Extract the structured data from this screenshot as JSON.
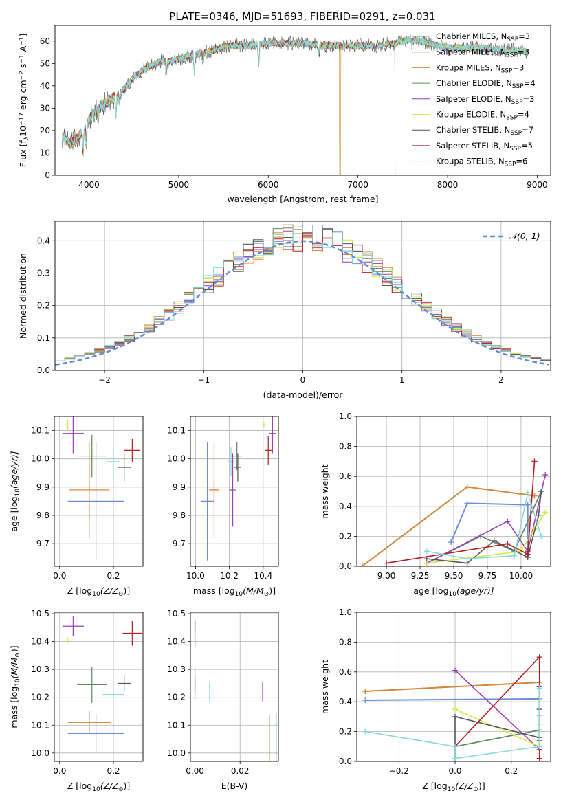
{
  "figure_title": "PLATE=0346, MJD=51693, FIBERID=0291, z=0.031",
  "colors": {
    "Chabrier MILES": "#6a8fd6",
    "Salpeter MILES": "#e07b3a",
    "Kroupa MILES": "#cc8a3a",
    "Chabrier ELODIE": "#5f8660",
    "Salpeter ELODIE": "#9b3fb5",
    "Kroupa ELODIE": "#d6e84a",
    "Chabrier STELIB": "#555555",
    "Salpeter STELIB": "#b21e22",
    "Kroupa STELIB": "#86dada",
    "gaussian": "#5b8bd6"
  },
  "chart_data": [
    {
      "id": "spectrum",
      "type": "line",
      "title": "PLATE=0346, MJD=51693, FIBERID=0291, z=0.031",
      "xlabel": "wavelength [Angstrom, rest frame]",
      "ylabel_parts": {
        "a": "Flux [f",
        "b": "λ",
        "c": "10",
        "d": "−17",
        "e": " erg cm",
        "f": "−2",
        "g": " s",
        "h": "−1",
        "i": " A",
        "j": "−1",
        "k": "]"
      },
      "xlim": [
        3620,
        9150
      ],
      "ylim": [
        0,
        67
      ],
      "xticks": [
        4000,
        5000,
        6000,
        7000,
        8000,
        9000
      ],
      "yticks": [
        0,
        10,
        20,
        30,
        40,
        50,
        60
      ],
      "legend_position": "top-right",
      "legend": [
        {
          "name": "Chabrier MILES",
          "nssp": "=3"
        },
        {
          "name": "Salpeter MILES",
          "nssp": "=3"
        },
        {
          "name": "Kroupa MILES",
          "nssp": "=3"
        },
        {
          "name": "Chabrier ELODIE",
          "nssp": "=4"
        },
        {
          "name": "Salpeter ELODIE",
          "nssp": "=3"
        },
        {
          "name": "Kroupa ELODIE",
          "nssp": "=4"
        },
        {
          "name": "Chabrier STELIB",
          "nssp": "=7"
        },
        {
          "name": "Salpeter STELIB",
          "nssp": "=5"
        },
        {
          "name": "Kroupa STELIB",
          "nssp": "=6"
        }
      ],
      "legend_nssp_prefix": "N",
      "legend_nssp_sub": "SSP",
      "continuum": {
        "x": [
          3700,
          3800,
          3900,
          4000,
          4100,
          4200,
          4300,
          4400,
          4500,
          4600,
          4700,
          4800,
          4900,
          5000,
          5200,
          5400,
          5600,
          5800,
          6000,
          6200,
          6400,
          6600,
          6800,
          7000,
          7200,
          7400,
          7600,
          7800,
          8000,
          8200,
          8400,
          8600,
          8800,
          8900
        ],
        "y": [
          17,
          14,
          18,
          25,
          30,
          33,
          35,
          39,
          44,
          47,
          49,
          51,
          51,
          52,
          54,
          56,
          58,
          58,
          59,
          59,
          59,
          58,
          58,
          58,
          58,
          59,
          61,
          59,
          57,
          57,
          57,
          56,
          56,
          55
        ]
      },
      "absorption": [
        {
          "x": 3934,
          "depth": 10
        },
        {
          "x": 3969,
          "depth": 9
        },
        {
          "x": 4102,
          "depth": 5
        },
        {
          "x": 4300,
          "depth": 8
        },
        {
          "x": 4340,
          "depth": 5
        },
        {
          "x": 4861,
          "depth": 5
        },
        {
          "x": 5175,
          "depth": 8
        },
        {
          "x": 5270,
          "depth": 4
        },
        {
          "x": 5893,
          "depth": 9
        },
        {
          "x": 6563,
          "depth": 4
        },
        {
          "x": 7200,
          "depth": 3
        },
        {
          "x": 7600,
          "depth": 3
        }
      ],
      "model_drops": [
        {
          "series": "Kroupa MILES",
          "x": 6800
        },
        {
          "series": "Salpeter STELIB",
          "x": 7420
        }
      ]
    },
    {
      "id": "residuals",
      "type": "histogram",
      "xlabel": "(data-model)/error",
      "ylabel": "Normed distribution",
      "xlim": [
        -2.5,
        2.5
      ],
      "ylim": [
        0,
        0.46
      ],
      "xticks": [
        -2,
        -1,
        0,
        1,
        2
      ],
      "yticks": [
        0.0,
        0.1,
        0.2,
        0.3,
        0.4
      ],
      "grid": true,
      "legend_position": "top-right",
      "gaussian_label": "𝒩(0, 1)",
      "bin_width": 0.1
    },
    {
      "id": "age_vs_Z",
      "type": "errorbar",
      "xlabel_main": "Z [log",
      "xlabel_sub": "10",
      "xlabel_tail": "(Z/Z",
      "xlabel_sun": "⊙",
      "xlabel_end": ")]",
      "ylabel_main": "age  [log",
      "ylabel_sub": "10",
      "ylabel_tail": "(age/yr)]",
      "xlim": [
        -0.02,
        0.31
      ],
      "ylim": [
        9.62,
        10.15
      ],
      "xticks": [
        "0.0",
        "0.2"
      ],
      "xtick_vals": [
        0.0,
        0.2
      ],
      "yticks": [
        "9.7",
        "9.8",
        "9.9",
        "10.0",
        "10.1"
      ],
      "ytick_vals": [
        9.7,
        9.8,
        9.9,
        10.0,
        10.1
      ],
      "points": [
        {
          "series": "Chabrier MILES",
          "x": 0.135,
          "y": 9.85,
          "xerr": 0.105,
          "yerr": 0.21
        },
        {
          "series": "Salpeter MILES",
          "x": 0.11,
          "y": 9.89,
          "xerr": 0.075,
          "yerr": 0.09
        },
        {
          "series": "Kroupa MILES",
          "x": 0.11,
          "y": 9.89,
          "xerr": 0.07,
          "yerr": 0.17
        },
        {
          "series": "Chabrier ELODIE",
          "x": 0.12,
          "y": 10.01,
          "xerr": 0.055,
          "yerr": 0.075
        },
        {
          "series": "Salpeter ELODIE",
          "x": 0.05,
          "y": 10.09,
          "xerr": 0.04,
          "yerr": 0.07
        },
        {
          "series": "Kroupa ELODIE",
          "x": 0.03,
          "y": 10.12,
          "xerr": 0.015,
          "yerr": 0.02
        },
        {
          "series": "Chabrier STELIB",
          "x": 0.24,
          "y": 9.97,
          "xerr": 0.025,
          "yerr": 0.05
        },
        {
          "series": "Salpeter STELIB",
          "x": 0.27,
          "y": 10.03,
          "xerr": 0.03,
          "yerr": 0.04
        },
        {
          "series": "Kroupa STELIB",
          "x": 0.2,
          "y": 9.99,
          "xerr": 0.025,
          "yerr": 0.05
        }
      ]
    },
    {
      "id": "age_vs_mass",
      "type": "errorbar",
      "xlabel_main": "mass [log",
      "xlabel_sub": "10",
      "xlabel_tail": "(M/M",
      "xlabel_sun": "⊙",
      "xlabel_end": ")]",
      "xlim": [
        9.97,
        10.49
      ],
      "ylim": [
        9.62,
        10.15
      ],
      "xticks": [
        "10.0",
        "10.2",
        "10.4"
      ],
      "xtick_vals": [
        10.0,
        10.2,
        10.4
      ],
      "yticks": [
        "9.7",
        "9.8",
        "9.9",
        "10.0",
        "10.1"
      ],
      "ytick_vals": [
        9.7,
        9.8,
        9.9,
        10.0,
        10.1
      ],
      "points": [
        {
          "series": "Chabrier MILES",
          "x": 10.07,
          "y": 9.85,
          "xerr": 0.04,
          "yerr": 0.21
        },
        {
          "series": "Salpeter MILES",
          "x": 10.11,
          "y": 9.89,
          "xerr": 0.03,
          "yerr": 0.04
        },
        {
          "series": "Kroupa MILES",
          "x": 10.11,
          "y": 9.89,
          "xerr": 0.02,
          "yerr": 0.17
        },
        {
          "series": "Chabrier ELODIE",
          "x": 10.245,
          "y": 10.01,
          "xerr": 0.03,
          "yerr": 0.05
        },
        {
          "series": "Salpeter ELODIE",
          "x": 10.455,
          "y": 10.09,
          "xerr": 0.02,
          "yerr": 0.07
        },
        {
          "series": "Kroupa ELODIE",
          "x": 10.405,
          "y": 10.12,
          "xerr": 0.01,
          "yerr": 0.01
        },
        {
          "series": "Chabrier STELIB",
          "x": 10.25,
          "y": 9.97,
          "xerr": 0.02,
          "yerr": 0.05
        },
        {
          "series": "Salpeter STELIB",
          "x": 10.43,
          "y": 10.03,
          "xerr": 0.02,
          "yerr": 0.05
        },
        {
          "series": "Kroupa STELIB",
          "x": 10.21,
          "y": 9.99,
          "xerr": 0.02,
          "yerr": 0.05
        },
        {
          "series": "Salpeter ELODIE",
          "x": 10.22,
          "y": 9.89,
          "xerr": 0.02,
          "yerr": 0.13
        }
      ]
    },
    {
      "id": "mass_weight_vs_age",
      "type": "line",
      "xlabel_main": "age  [log",
      "xlabel_sub": "10",
      "xlabel_tail": "(age/yr)]",
      "ylabel": "mass weight",
      "xlim": [
        8.78,
        10.22
      ],
      "ylim": [
        0,
        1
      ],
      "xticks": [
        "9.00",
        "9.25",
        "9.50",
        "9.75",
        "10.00"
      ],
      "xtick_vals": [
        9.0,
        9.25,
        9.5,
        9.75,
        10.0
      ],
      "yticks": [
        "0.0",
        "0.2",
        "0.4",
        "0.6",
        "0.8",
        "1.0"
      ],
      "ytick_vals": [
        0,
        0.2,
        0.4,
        0.6,
        0.8,
        1.0
      ],
      "grid": true,
      "series": [
        {
          "name": "Chabrier MILES",
          "x": [
            9.48,
            9.6,
            10.05,
            10.05
          ],
          "y": [
            0.16,
            0.42,
            0.41,
            0.1
          ]
        },
        {
          "name": "Salpeter MILES",
          "x": [
            8.82,
            9.6,
            10.1
          ],
          "y": [
            0.0,
            0.53,
            0.47
          ]
        },
        {
          "name": "Kroupa MILES",
          "x": [
            8.82,
            9.6,
            10.1
          ],
          "y": [
            0.0,
            0.53,
            0.47
          ]
        },
        {
          "name": "Chabrier ELODIE",
          "x": [
            9.3,
            9.7,
            9.95,
            10.15
          ],
          "y": [
            0.02,
            0.2,
            0.1,
            0.5
          ]
        },
        {
          "name": "Salpeter ELODIE",
          "x": [
            9.3,
            9.9,
            10.05,
            10.18
          ],
          "y": [
            0.02,
            0.3,
            0.1,
            0.61
          ]
        },
        {
          "name": "Kroupa ELODIE",
          "x": [
            9.3,
            10.0,
            10.1,
            10.18
          ],
          "y": [
            0.02,
            0.1,
            0.25,
            0.36
          ]
        },
        {
          "name": "Chabrier STELIB",
          "x": [
            9.3,
            9.6,
            9.8,
            10.05,
            10.13,
            10.15
          ],
          "y": [
            0.05,
            0.02,
            0.17,
            0.06,
            0.34,
            0.5
          ]
        },
        {
          "name": "Salpeter STELIB",
          "x": [
            9.0,
            9.9,
            10.05,
            10.1
          ],
          "y": [
            0.02,
            0.15,
            0.08,
            0.7
          ]
        },
        {
          "name": "Kroupa STELIB",
          "x": [
            9.3,
            9.6,
            9.95,
            10.05,
            10.15
          ],
          "y": [
            0.1,
            0.05,
            0.07,
            0.49,
            0.2
          ]
        }
      ]
    },
    {
      "id": "mass_vs_Z",
      "type": "errorbar",
      "xlabel_main": "Z [log",
      "xlabel_sub": "10",
      "xlabel_tail": "(Z/Z",
      "xlabel_sun": "⊙",
      "xlabel_end": ")]",
      "ylabel_main": "mass [log",
      "ylabel_sub": "10",
      "ylabel_tail": "(M/M",
      "ylabel_sun": "⊙",
      "ylabel_end": ")]",
      "xlim": [
        -0.02,
        0.31
      ],
      "ylim": [
        9.97,
        10.505
      ],
      "xticks": [
        "0.0",
        "0.2"
      ],
      "xtick_vals": [
        0.0,
        0.2
      ],
      "yticks": [
        "10.0",
        "10.1",
        "10.2",
        "10.3",
        "10.4",
        "10.5"
      ],
      "ytick_vals": [
        10.0,
        10.1,
        10.2,
        10.3,
        10.4,
        10.5
      ],
      "points": [
        {
          "series": "Chabrier MILES",
          "x": 0.135,
          "y": 10.07,
          "xerr": 0.105,
          "yerr": 0.07
        },
        {
          "series": "Salpeter MILES",
          "x": 0.11,
          "y": 10.11,
          "xerr": 0.08,
          "yerr": 0.04
        },
        {
          "series": "Kroupa MILES",
          "x": 0.11,
          "y": 10.11,
          "xerr": 0.07,
          "yerr": 0.03
        },
        {
          "series": "Chabrier ELODIE",
          "x": 0.12,
          "y": 10.245,
          "xerr": 0.055,
          "yerr": 0.065
        },
        {
          "series": "Salpeter ELODIE",
          "x": 0.05,
          "y": 10.455,
          "xerr": 0.04,
          "yerr": 0.035
        },
        {
          "series": "Kroupa ELODIE",
          "x": 0.03,
          "y": 10.405,
          "xerr": 0.015,
          "yerr": 0.01
        },
        {
          "series": "Chabrier STELIB",
          "x": 0.24,
          "y": 10.25,
          "xerr": 0.025,
          "yerr": 0.03
        },
        {
          "series": "Salpeter STELIB",
          "x": 0.27,
          "y": 10.43,
          "xerr": 0.035,
          "yerr": 0.045
        },
        {
          "series": "Kroupa STELIB",
          "x": 0.2,
          "y": 10.21,
          "xerr": 0.04,
          "yerr": 0.01
        }
      ]
    },
    {
      "id": "mass_vs_ebv",
      "type": "errorbar",
      "xlabel": "E(B-V)",
      "xlim": [
        -0.002,
        0.037
      ],
      "ylim": [
        9.97,
        10.505
      ],
      "xticks": [
        "0.00",
        "0.02"
      ],
      "xtick_vals": [
        0.0,
        0.02
      ],
      "yticks": [
        "10.0",
        "10.1",
        "10.2",
        "10.3",
        "10.4",
        "10.5"
      ],
      "ytick_vals": [
        10.0,
        10.1,
        10.2,
        10.3,
        10.4,
        10.5
      ],
      "points": [
        {
          "series": "Salpeter STELIB",
          "x": 0.0,
          "y": 10.43,
          "xerr": 0.0,
          "yerr": 0.05
        },
        {
          "series": "Salpeter ELODIE",
          "x": 0.0,
          "y": 10.455,
          "xerr": 0.0,
          "yerr": 0.02
        },
        {
          "series": "Chabrier ELODIE",
          "x": 0.0,
          "y": 10.25,
          "xerr": 0.0,
          "yerr": 0.06
        },
        {
          "series": "Chabrier STELIB",
          "x": 0.0,
          "y": 10.25,
          "xerr": 0.0,
          "yerr": 0.03
        },
        {
          "series": "Kroupa STELIB",
          "x": 0.0065,
          "y": 10.22,
          "xerr": 0.0,
          "yerr": 0.035
        },
        {
          "series": "Salpeter ELODIE",
          "x": 0.03,
          "y": 10.22,
          "xerr": 0.0,
          "yerr": 0.035
        },
        {
          "series": "Kroupa MILES",
          "x": 0.033,
          "y": 10.05,
          "xerr": 0.0,
          "yerr": 0.085
        },
        {
          "series": "Chabrier MILES",
          "x": 0.036,
          "y": 10.04,
          "xerr": 0.0,
          "yerr": 0.105
        }
      ]
    },
    {
      "id": "mass_weight_vs_Z",
      "type": "line",
      "xlabel_main": "Z [log",
      "xlabel_sub": "10",
      "xlabel_tail": "(Z/Z",
      "xlabel_sun": "⊙",
      "xlabel_end": ")]",
      "ylabel": "mass weight",
      "xlim": [
        -0.35,
        0.34
      ],
      "ylim": [
        0,
        1
      ],
      "xticks": [
        "−0.2",
        "0.0",
        "0.2"
      ],
      "xtick_vals": [
        -0.2,
        0.0,
        0.2
      ],
      "yticks": [
        "0.0",
        "0.2",
        "0.4",
        "0.6",
        "0.8",
        "1.0"
      ],
      "ytick_vals": [
        0,
        0.2,
        0.4,
        0.6,
        0.8,
        1.0
      ],
      "grid": true,
      "series": [
        {
          "name": "Chabrier MILES",
          "x": [
            -0.32,
            0.3
          ],
          "y": [
            0.41,
            0.42
          ]
        },
        {
          "name": "Salpeter MILES",
          "x": [
            -0.32,
            0.3
          ],
          "y": [
            0.47,
            0.53
          ]
        },
        {
          "name": "Kroupa MILES",
          "x": [
            -0.32,
            0.3
          ],
          "y": [
            0.47,
            0.53
          ]
        },
        {
          "name": "Chabrier ELODIE",
          "x": [
            0.0,
            0.3,
            0.3
          ],
          "y": [
            0.1,
            0.21,
            0.14
          ]
        },
        {
          "name": "Salpeter ELODIE",
          "x": [
            0.0,
            0.3,
            0.3
          ],
          "y": [
            0.61,
            0.08,
            0.31
          ]
        },
        {
          "name": "Kroupa ELODIE",
          "x": [
            0.0,
            0.3,
            0.3
          ],
          "y": [
            0.35,
            0.1,
            0.25
          ]
        },
        {
          "name": "Chabrier STELIB",
          "x": [
            0.0,
            0.0,
            0.3,
            0.3,
            0.3
          ],
          "y": [
            0.02,
            0.3,
            0.16,
            0.35,
            0.5
          ]
        },
        {
          "name": "Salpeter STELIB",
          "x": [
            0.0,
            0.3,
            0.3
          ],
          "y": [
            0.1,
            0.7,
            0.02
          ]
        },
        {
          "name": "Kroupa STELIB",
          "x": [
            -0.32,
            0.0,
            0.0,
            0.3,
            0.3
          ],
          "y": [
            0.2,
            0.1,
            0.02,
            0.1,
            0.49
          ]
        }
      ]
    }
  ]
}
